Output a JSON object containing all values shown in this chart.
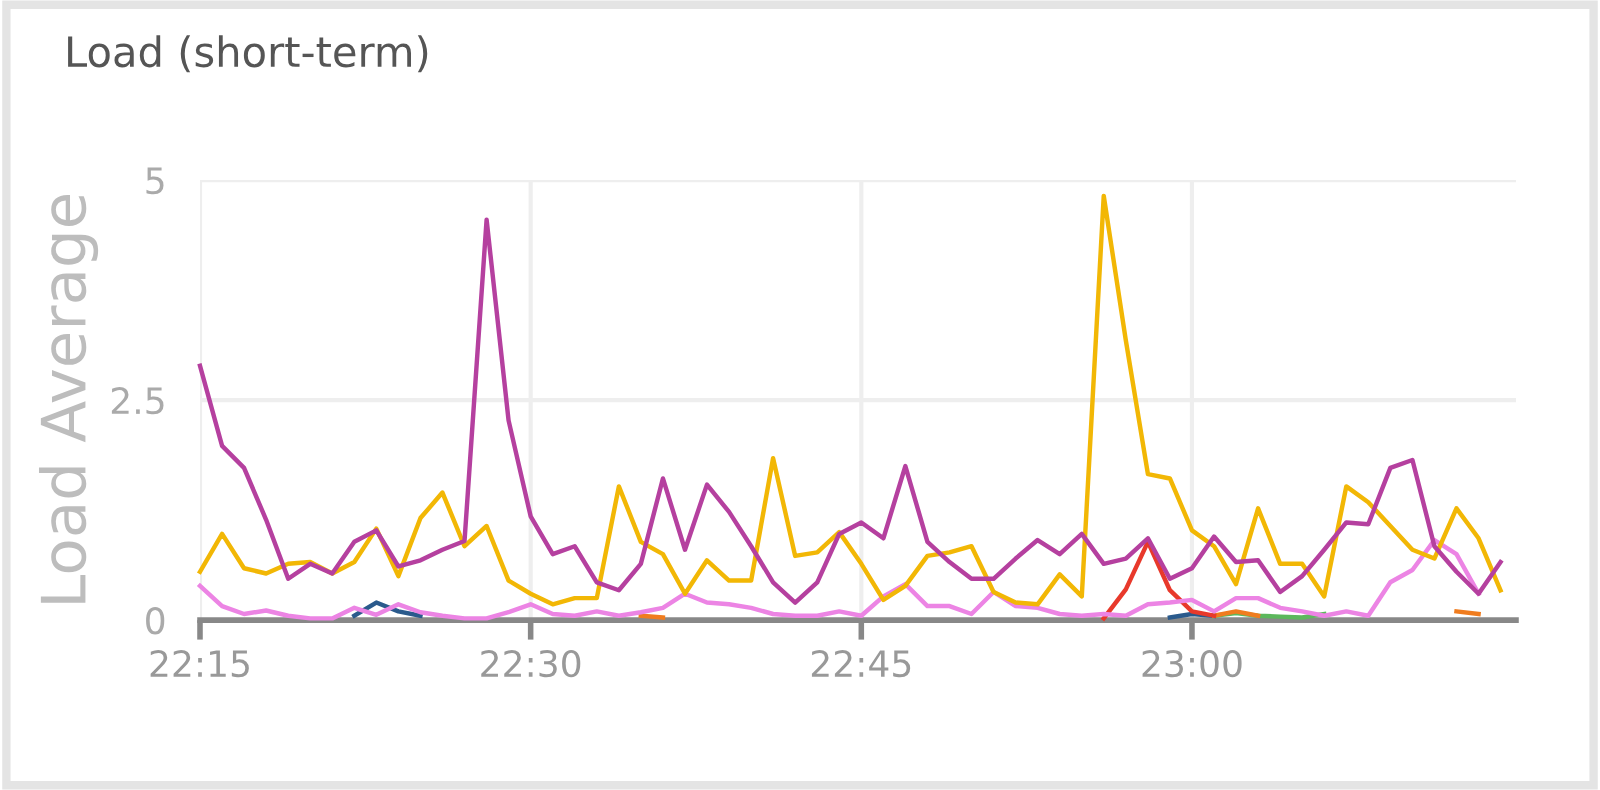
{
  "chart_data": {
    "type": "line",
    "title": "Load (short-term)",
    "ylabel": "Load Average",
    "x": [
      22.25,
      22.2667,
      22.2833,
      22.3,
      22.3167,
      22.3333,
      22.35,
      22.3667,
      22.3833,
      22.4,
      22.4167,
      22.4333,
      22.45,
      22.4667,
      22.4833,
      22.5,
      22.5167,
      22.5333,
      22.55,
      22.5667,
      22.5833,
      22.6,
      22.6167,
      22.6333,
      22.65,
      22.6667,
      22.6833,
      22.7,
      22.7167,
      22.7333,
      22.75,
      22.7667,
      22.7833,
      22.8,
      22.8167,
      22.8333,
      22.85,
      22.8667,
      22.8833,
      22.9,
      22.9167,
      22.9333,
      22.95,
      22.9667,
      22.9833,
      23.0,
      23.0167,
      23.0333,
      23.05,
      23.0667,
      23.0833,
      23.1,
      23.1167,
      23.1333,
      23.15,
      23.1667,
      23.1833,
      23.2,
      23.2167,
      23.2333
    ],
    "xlim": [
      22.25,
      23.245
    ],
    "xticks": [
      {
        "value": 22.25,
        "label": "22:15"
      },
      {
        "value": 22.5,
        "label": "22:30"
      },
      {
        "value": 22.75,
        "label": "22:45"
      },
      {
        "value": 23.0,
        "label": "23:00"
      }
    ],
    "ylim": [
      0,
      5
    ],
    "yticks": [
      0,
      2.5,
      5
    ],
    "grid": true,
    "marker": "none",
    "line_style": "solid",
    "series": [
      {
        "color": "#2a5a8c",
        "values": [
          null,
          null,
          null,
          null,
          null,
          null,
          null,
          0.05,
          0.2,
          0.1,
          0.05,
          null,
          null,
          null,
          null,
          null,
          null,
          null,
          null,
          null,
          null,
          null,
          null,
          null,
          null,
          null,
          null,
          null,
          null,
          null,
          null,
          null,
          null,
          null,
          null,
          null,
          null,
          null,
          null,
          null,
          null,
          null,
          null,
          null,
          0.03,
          0.07,
          0.05,
          null,
          null,
          null,
          null,
          null,
          null,
          null,
          null,
          null,
          null,
          null,
          null,
          null
        ]
      },
      {
        "color": "#5cb85c",
        "values": [
          null,
          null,
          null,
          null,
          null,
          null,
          null,
          null,
          null,
          null,
          null,
          null,
          null,
          null,
          null,
          null,
          null,
          null,
          null,
          null,
          null,
          null,
          null,
          null,
          null,
          null,
          null,
          null,
          null,
          null,
          null,
          null,
          null,
          null,
          null,
          null,
          null,
          null,
          null,
          null,
          null,
          null,
          null,
          null,
          null,
          null,
          0.05,
          0.08,
          0.05,
          0.04,
          0.03,
          0.07,
          null,
          null,
          null,
          null,
          null,
          null,
          null,
          null
        ]
      },
      {
        "color": "#f07c1e",
        "values": [
          null,
          null,
          null,
          null,
          null,
          null,
          null,
          null,
          null,
          null,
          null,
          null,
          null,
          null,
          null,
          null,
          null,
          null,
          null,
          null,
          0.05,
          0.03,
          null,
          null,
          null,
          null,
          null,
          null,
          null,
          null,
          null,
          null,
          null,
          null,
          null,
          null,
          null,
          null,
          null,
          null,
          null,
          null,
          null,
          null,
          null,
          null,
          0.05,
          0.1,
          0.05,
          null,
          null,
          null,
          null,
          null,
          null,
          null,
          null,
          0.1,
          0.07,
          null
        ]
      },
      {
        "color": "#e8392b",
        "values": [
          null,
          null,
          null,
          null,
          null,
          null,
          null,
          null,
          null,
          null,
          null,
          null,
          null,
          null,
          null,
          null,
          null,
          null,
          null,
          null,
          null,
          null,
          null,
          null,
          null,
          null,
          null,
          null,
          null,
          null,
          null,
          null,
          null,
          null,
          null,
          null,
          null,
          null,
          null,
          null,
          null,
          0.02,
          0.35,
          0.89,
          0.34,
          0.1,
          0.05,
          null,
          null,
          null,
          null,
          null,
          null,
          null,
          null,
          null,
          null,
          null,
          null,
          null
        ]
      },
      {
        "color": "#ec84e4",
        "values": [
          0.39,
          0.16,
          0.07,
          0.11,
          0.05,
          0.02,
          0.02,
          0.14,
          0.06,
          0.18,
          0.09,
          0.05,
          0.02,
          0.02,
          0.09,
          0.18,
          0.07,
          0.05,
          0.1,
          0.05,
          0.09,
          0.14,
          0.3,
          0.2,
          0.18,
          0.14,
          0.07,
          0.05,
          0.05,
          0.1,
          0.05,
          0.27,
          0.41,
          0.16,
          0.16,
          0.07,
          0.32,
          0.16,
          0.14,
          0.07,
          0.05,
          0.07,
          0.05,
          0.18,
          0.2,
          0.23,
          0.1,
          0.25,
          0.25,
          0.14,
          0.1,
          0.05,
          0.1,
          0.05,
          0.43,
          0.57,
          0.91,
          0.75,
          0.3,
          null
        ]
      },
      {
        "color": "#f2b705",
        "values": [
          0.55,
          0.98,
          0.59,
          0.53,
          0.64,
          0.66,
          0.53,
          0.66,
          1.04,
          0.5,
          1.16,
          1.45,
          0.84,
          1.07,
          0.45,
          0.3,
          0.18,
          0.25,
          0.25,
          1.52,
          0.89,
          0.75,
          0.3,
          0.68,
          0.45,
          0.45,
          1.84,
          0.73,
          0.77,
          1.0,
          0.64,
          0.23,
          0.39,
          0.73,
          0.77,
          0.84,
          0.32,
          0.2,
          0.18,
          0.52,
          0.27,
          4.82,
          3.18,
          1.66,
          1.61,
          1.02,
          0.84,
          0.41,
          1.27,
          0.64,
          0.64,
          0.27,
          1.52,
          1.34,
          1.07,
          0.8,
          0.7,
          1.27,
          0.93,
          0.34
        ]
      },
      {
        "color": "#b5409f",
        "values": [
          2.89,
          1.98,
          1.73,
          1.14,
          0.47,
          0.64,
          0.53,
          0.89,
          1.02,
          0.61,
          0.68,
          0.8,
          0.9,
          4.55,
          2.27,
          1.18,
          0.75,
          0.84,
          0.43,
          0.34,
          0.64,
          1.61,
          0.8,
          1.54,
          1.23,
          0.84,
          0.43,
          0.2,
          0.43,
          0.98,
          1.11,
          0.93,
          1.75,
          0.89,
          0.66,
          0.47,
          0.47,
          0.7,
          0.91,
          0.75,
          0.98,
          0.64,
          0.7,
          0.93,
          0.47,
          0.59,
          0.95,
          0.66,
          0.68,
          0.32,
          0.5,
          0.8,
          1.11,
          1.09,
          1.73,
          1.82,
          0.84,
          0.55,
          0.3,
          0.66
        ]
      }
    ]
  }
}
